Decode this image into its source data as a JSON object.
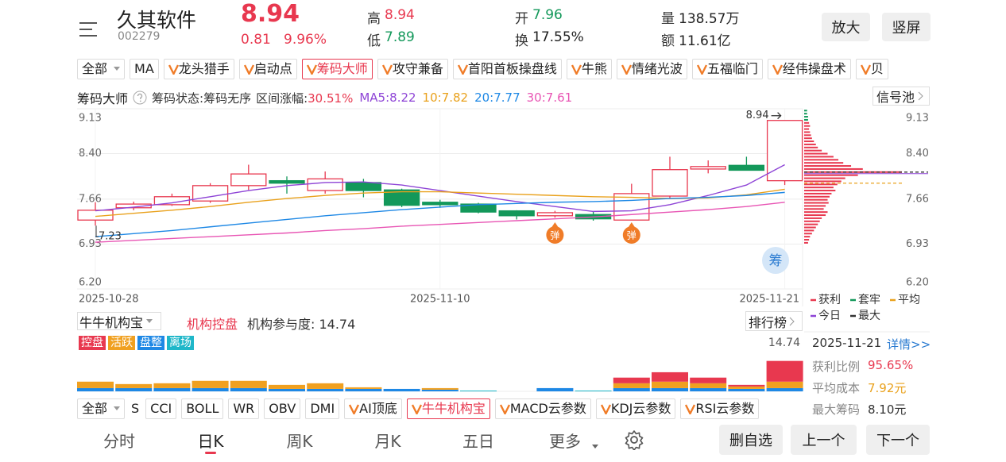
{
  "header": {
    "name": "久其软件",
    "code": "002279",
    "price": "8.94",
    "change": "0.81",
    "change_pct": "9.96%",
    "high_label": "高",
    "high": "8.94",
    "low_label": "低",
    "low": "7.89",
    "open_label": "开",
    "open": "7.96",
    "turnover_label": "换",
    "turnover": "17.55%",
    "volume_label": "量",
    "volume": "138.57万",
    "amount_label": "额",
    "amount": "11.61亿",
    "buttons": [
      "放大",
      "竖屏"
    ]
  },
  "indicator_tabs": {
    "selected": 4,
    "items": [
      {
        "label": "全部",
        "dropdown": true
      },
      {
        "label": "MA"
      },
      {
        "label": "龙头猎手",
        "v": true
      },
      {
        "label": "启动点",
        "v": true
      },
      {
        "label": "筹码大师",
        "v": true
      },
      {
        "label": "攻守兼备",
        "v": true
      },
      {
        "label": "首阳首板操盘线",
        "v": true
      },
      {
        "label": "牛熊",
        "v": true
      },
      {
        "label": "情绪光波",
        "v": true
      },
      {
        "label": "五福临门",
        "v": true
      },
      {
        "label": "经伟操盘术",
        "v": true
      },
      {
        "label": "贝",
        "v": true
      }
    ]
  },
  "chip_info": {
    "title": "筹码大师",
    "status": "筹码状态:筹码无序",
    "range_label": "区间涨幅:",
    "range_value": "30.51%",
    "button": "信号池",
    "chip_button": "筹"
  },
  "chart_data": [
    {
      "type": "candlestick",
      "categories": [
        "2025-10-28",
        null,
        null,
        null,
        null,
        null,
        null,
        null,
        null,
        "2025-11-10",
        null,
        null,
        null,
        null,
        null,
        null,
        null,
        null,
        "2025-11-21"
      ],
      "open": [
        7.32,
        7.52,
        7.57,
        7.63,
        7.88,
        7.96,
        7.8,
        7.93,
        7.81,
        7.61,
        7.58,
        7.47,
        7.39,
        7.41,
        7.32,
        7.71,
        8.15,
        8.21,
        7.96
      ],
      "high": [
        7.61,
        7.62,
        7.75,
        7.92,
        8.22,
        8.03,
        8.11,
        7.99,
        7.83,
        7.65,
        7.6,
        7.48,
        7.47,
        7.46,
        7.91,
        8.35,
        8.29,
        8.35,
        8.94
      ],
      "low": [
        7.23,
        7.48,
        7.55,
        7.6,
        7.81,
        7.75,
        7.75,
        7.69,
        7.53,
        7.52,
        7.43,
        7.33,
        7.36,
        7.31,
        7.32,
        7.67,
        8.08,
        8.13,
        7.89
      ],
      "close": [
        7.48,
        7.58,
        7.7,
        7.88,
        8.07,
        7.92,
        7.99,
        7.8,
        7.56,
        7.57,
        7.45,
        7.39,
        7.44,
        7.34,
        7.75,
        8.14,
        8.19,
        8.13,
        8.94
      ],
      "up_color": "#e8384f",
      "down_color": "#13985a",
      "series": [
        {
          "name": "MA5:8.22",
          "color": "#8e44d6",
          "values": [
            7.47,
            7.53,
            7.6,
            7.7,
            7.8,
            7.88,
            7.93,
            7.94,
            7.89,
            7.8,
            7.71,
            7.62,
            7.54,
            7.46,
            7.47,
            7.57,
            7.72,
            7.89,
            8.22
          ]
        },
        {
          "name": "10:7.82",
          "color": "#e9a11c",
          "values": [
            7.38,
            7.43,
            7.48,
            7.54,
            7.61,
            7.67,
            7.72,
            7.76,
            7.78,
            7.78,
            7.76,
            7.74,
            7.72,
            7.7,
            7.69,
            7.67,
            7.68,
            7.73,
            7.82
          ]
        },
        {
          "name": "20:7.77",
          "color": "#1e88e5",
          "values": [
            7.05,
            7.1,
            7.15,
            7.21,
            7.27,
            7.33,
            7.39,
            7.44,
            7.49,
            7.53,
            7.57,
            7.59,
            7.61,
            7.62,
            7.64,
            7.67,
            7.69,
            7.72,
            7.77
          ]
        },
        {
          "name": "30:7.61",
          "color": "#e855b4",
          "values": [
            6.96,
            6.99,
            7.02,
            7.05,
            7.08,
            7.11,
            7.15,
            7.18,
            7.22,
            7.25,
            7.28,
            7.31,
            7.34,
            7.37,
            7.41,
            7.45,
            7.49,
            7.54,
            7.61
          ]
        }
      ],
      "ylim": [
        6.2,
        9.13
      ],
      "yticks": [
        9.13,
        {
          "value": 8.4,
          "label": "8.40"
        },
        7.66,
        6.93,
        {
          "value": 6.2,
          "label": "6.20"
        }
      ],
      "annotations": [
        {
          "text": "8.94",
          "index": 18
        },
        {
          "text": "7.23",
          "index": 0
        }
      ],
      "signals": [
        {
          "label": "弹",
          "index": 12
        },
        {
          "label": "弹",
          "index": 14
        }
      ],
      "chips": {
        "prices": [
          9.1,
          9.05,
          9.0,
          8.95,
          8.9,
          8.85,
          8.8,
          8.75,
          8.7,
          8.65,
          8.6,
          8.55,
          8.5,
          8.45,
          8.4,
          8.35,
          8.3,
          8.25,
          8.2,
          8.15,
          8.1,
          8.05,
          8.0,
          7.95,
          7.9,
          7.85,
          7.8,
          7.75,
          7.7,
          7.65,
          7.6,
          7.55,
          7.5,
          7.45,
          7.4,
          7.35,
          7.3,
          7.25,
          7.2,
          7.15,
          7.1,
          7.05,
          7.0,
          6.95
        ],
        "values": [
          3,
          3,
          4,
          4,
          5,
          6,
          5,
          6,
          7,
          8,
          10,
          12,
          14,
          18,
          24,
          30,
          35,
          40,
          48,
          60,
          100,
          55,
          42,
          38,
          34,
          30,
          32,
          28,
          26,
          24,
          25,
          22,
          20,
          24,
          22,
          18,
          16,
          14,
          12,
          10,
          8,
          6,
          5,
          4
        ],
        "xlim": [
          0,
          100
        ],
        "avg": 7.92,
        "max": 8.1
      },
      "legend": [
        {
          "name": "获利",
          "color": "#e8384f"
        },
        {
          "name": "套牢",
          "color": "#13985a"
        },
        {
          "name": "平均",
          "color": "#e9a11c"
        },
        {
          "name": "今日",
          "color": "#8e44d6"
        },
        {
          "name": "最大",
          "color": "#333333"
        }
      ]
    },
    {
      "type": "bar",
      "stacked": true,
      "ylim": [
        0,
        14.74
      ],
      "yticks": [
        14.74
      ],
      "series": [
        {
          "name": "控盘",
          "color": "#e8384f",
          "values": [
            0,
            0,
            0,
            0,
            0,
            0,
            0,
            0,
            0,
            0,
            0,
            0,
            0,
            0,
            2.1,
            3.5,
            2.1,
            0.6,
            7.7
          ]
        },
        {
          "name": "活跃",
          "color": "#f0a020",
          "values": [
            2.4,
            1.5,
            1.8,
            2.7,
            2.7,
            1.5,
            2.1,
            0.6,
            0,
            0.6,
            0,
            0,
            0,
            0,
            1.8,
            2.4,
            1.8,
            0.9,
            2.4
          ]
        },
        {
          "name": "盘整",
          "color": "#1e88e5",
          "values": [
            1.2,
            1.2,
            1.2,
            1.2,
            1.2,
            0.9,
            0.9,
            0.9,
            0.9,
            0.6,
            0,
            0,
            1.2,
            0,
            1.2,
            1.2,
            1.2,
            0.9,
            1.2
          ]
        },
        {
          "name": "离场",
          "color": "#1fb7c9",
          "values": [
            0,
            0,
            0,
            0,
            0,
            0,
            0,
            0,
            0,
            0,
            0.3,
            0,
            0,
            0.3,
            0,
            0,
            0,
            0,
            0
          ]
        }
      ]
    }
  ],
  "inst": {
    "selector": "牛牛机构宝",
    "status": "机构控盘",
    "participation": "机构参与度: 14.74",
    "button": "排行榜"
  },
  "side_panel": {
    "date": "2025-11-21",
    "detail": "详情>>",
    "rows": [
      {
        "label": "获利比例",
        "value": "95.65%",
        "color": "#e8384f"
      },
      {
        "label": "平均成本",
        "value": "7.92元",
        "color": "#e9a11c"
      },
      {
        "label": "最大筹码",
        "value": "8.10元",
        "color": "#333333"
      }
    ]
  },
  "bottom_tabs": {
    "selected": 8,
    "items": [
      {
        "label": "全部",
        "dropdown": true
      },
      {
        "label": "S",
        "clipped": true
      },
      {
        "label": "CCI"
      },
      {
        "label": "BOLL"
      },
      {
        "label": "WR"
      },
      {
        "label": "OBV"
      },
      {
        "label": "DMI"
      },
      {
        "label": "AI顶底",
        "v": true
      },
      {
        "label": "牛牛机构宝",
        "v": true
      },
      {
        "label": "MACD云参数",
        "v": true
      },
      {
        "label": "KDJ云参数",
        "v": true
      },
      {
        "label": "RSI云参数",
        "v": true
      }
    ]
  },
  "nav": {
    "selected": 1,
    "items": [
      "分时",
      "日K",
      "周K",
      "月K",
      "五日",
      "更多"
    ],
    "buttons": [
      "删自选",
      "上一个",
      "下一个"
    ]
  }
}
